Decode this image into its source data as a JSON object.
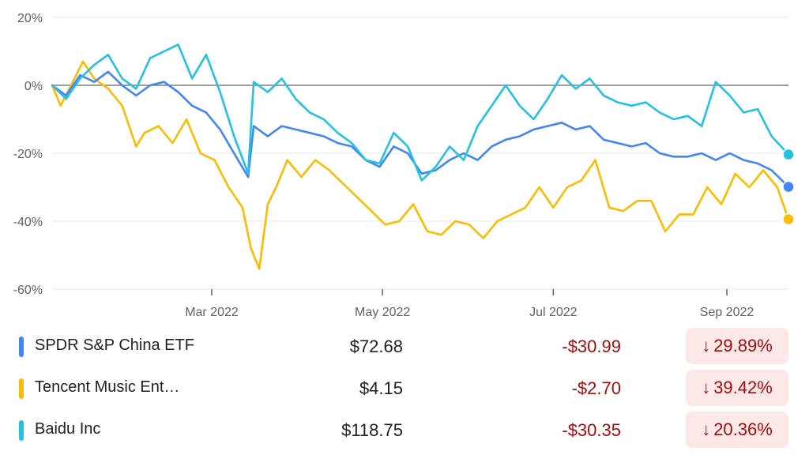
{
  "chart_data": {
    "type": "line",
    "y_ticks": [
      "20%",
      "0%",
      "-20%",
      "-40%",
      "-60%"
    ],
    "y_tick_values": [
      20,
      0,
      -20,
      -40,
      -60
    ],
    "ylim": [
      -60,
      20
    ],
    "x_ticks": [
      "Mar 2022",
      "May 2022",
      "Jul 2022",
      "Sep 2022"
    ],
    "x_tick_values": [
      "2022-03-01",
      "2022-05-01",
      "2022-07-01",
      "2022-09-01"
    ],
    "xlim": [
      "2022-01-03",
      "2022-09-23"
    ],
    "zero_line": true,
    "series": [
      {
        "name": "SPDR S&P China ETF",
        "color": "#4285f4",
        "points": [
          [
            "2022-01-03",
            0
          ],
          [
            "2022-01-08",
            -3
          ],
          [
            "2022-01-13",
            3
          ],
          [
            "2022-01-18",
            1
          ],
          [
            "2022-01-23",
            4
          ],
          [
            "2022-01-28",
            0
          ],
          [
            "2022-02-02",
            -3
          ],
          [
            "2022-02-07",
            0
          ],
          [
            "2022-02-12",
            1
          ],
          [
            "2022-02-17",
            -2
          ],
          [
            "2022-02-22",
            -6
          ],
          [
            "2022-02-27",
            -8
          ],
          [
            "2022-03-04",
            -13
          ],
          [
            "2022-03-09",
            -20
          ],
          [
            "2022-03-14",
            -27
          ],
          [
            "2022-03-16",
            -12
          ],
          [
            "2022-03-21",
            -15
          ],
          [
            "2022-03-26",
            -12
          ],
          [
            "2022-03-31",
            -13
          ],
          [
            "2022-04-05",
            -14
          ],
          [
            "2022-04-10",
            -15
          ],
          [
            "2022-04-15",
            -17
          ],
          [
            "2022-04-20",
            -18
          ],
          [
            "2022-04-25",
            -22
          ],
          [
            "2022-04-30",
            -24
          ],
          [
            "2022-05-05",
            -18
          ],
          [
            "2022-05-10",
            -20
          ],
          [
            "2022-05-15",
            -26
          ],
          [
            "2022-05-20",
            -25
          ],
          [
            "2022-05-25",
            -22
          ],
          [
            "2022-05-30",
            -20
          ],
          [
            "2022-06-04",
            -22
          ],
          [
            "2022-06-09",
            -18
          ],
          [
            "2022-06-14",
            -16
          ],
          [
            "2022-06-19",
            -15
          ],
          [
            "2022-06-24",
            -13
          ],
          [
            "2022-06-29",
            -12
          ],
          [
            "2022-07-04",
            -11
          ],
          [
            "2022-07-09",
            -13
          ],
          [
            "2022-07-14",
            -12
          ],
          [
            "2022-07-19",
            -16
          ],
          [
            "2022-07-24",
            -17
          ],
          [
            "2022-07-29",
            -18
          ],
          [
            "2022-08-03",
            -17
          ],
          [
            "2022-08-08",
            -20
          ],
          [
            "2022-08-13",
            -21
          ],
          [
            "2022-08-18",
            -21
          ],
          [
            "2022-08-23",
            -20
          ],
          [
            "2022-08-28",
            -22
          ],
          [
            "2022-09-02",
            -20
          ],
          [
            "2022-09-07",
            -22
          ],
          [
            "2022-09-12",
            -23
          ],
          [
            "2022-09-17",
            -25
          ],
          [
            "2022-09-23",
            -29.89
          ]
        ]
      },
      {
        "name": "Tencent Music Ent…",
        "color": "#fbbc04",
        "points": [
          [
            "2022-01-03",
            0
          ],
          [
            "2022-01-06",
            -6
          ],
          [
            "2022-01-11",
            2
          ],
          [
            "2022-01-14",
            7
          ],
          [
            "2022-01-18",
            2
          ],
          [
            "2022-01-23",
            -1
          ],
          [
            "2022-01-28",
            -6
          ],
          [
            "2022-02-02",
            -18
          ],
          [
            "2022-02-05",
            -14
          ],
          [
            "2022-02-10",
            -12
          ],
          [
            "2022-02-15",
            -17
          ],
          [
            "2022-02-20",
            -10
          ],
          [
            "2022-02-25",
            -20
          ],
          [
            "2022-03-02",
            -22
          ],
          [
            "2022-03-07",
            -30
          ],
          [
            "2022-03-12",
            -36
          ],
          [
            "2022-03-15",
            -48
          ],
          [
            "2022-03-18",
            -54
          ],
          [
            "2022-03-21",
            -35
          ],
          [
            "2022-03-24",
            -30
          ],
          [
            "2022-03-28",
            -22
          ],
          [
            "2022-04-02",
            -27
          ],
          [
            "2022-04-07",
            -22
          ],
          [
            "2022-04-12",
            -25
          ],
          [
            "2022-04-17",
            -29
          ],
          [
            "2022-04-22",
            -33
          ],
          [
            "2022-04-27",
            -37
          ],
          [
            "2022-05-02",
            -41
          ],
          [
            "2022-05-07",
            -40
          ],
          [
            "2022-05-12",
            -35
          ],
          [
            "2022-05-17",
            -43
          ],
          [
            "2022-05-22",
            -44
          ],
          [
            "2022-05-27",
            -40
          ],
          [
            "2022-06-01",
            -41
          ],
          [
            "2022-06-06",
            -45
          ],
          [
            "2022-06-11",
            -40
          ],
          [
            "2022-06-16",
            -38
          ],
          [
            "2022-06-21",
            -36
          ],
          [
            "2022-06-26",
            -30
          ],
          [
            "2022-07-01",
            -36
          ],
          [
            "2022-07-06",
            -30
          ],
          [
            "2022-07-11",
            -28
          ],
          [
            "2022-07-16",
            -22
          ],
          [
            "2022-07-21",
            -36
          ],
          [
            "2022-07-26",
            -37
          ],
          [
            "2022-07-31",
            -34
          ],
          [
            "2022-08-05",
            -34
          ],
          [
            "2022-08-10",
            -43
          ],
          [
            "2022-08-15",
            -38
          ],
          [
            "2022-08-20",
            -38
          ],
          [
            "2022-08-25",
            -30
          ],
          [
            "2022-08-30",
            -35
          ],
          [
            "2022-09-04",
            -26
          ],
          [
            "2022-09-09",
            -30
          ],
          [
            "2022-09-14",
            -25
          ],
          [
            "2022-09-19",
            -30
          ],
          [
            "2022-09-23",
            -39.42
          ]
        ]
      },
      {
        "name": "Baidu Inc",
        "color": "#24c1e0",
        "points": [
          [
            "2022-01-03",
            0
          ],
          [
            "2022-01-08",
            -4
          ],
          [
            "2022-01-13",
            2
          ],
          [
            "2022-01-18",
            6
          ],
          [
            "2022-01-23",
            9
          ],
          [
            "2022-01-28",
            2
          ],
          [
            "2022-02-02",
            -1
          ],
          [
            "2022-02-07",
            8
          ],
          [
            "2022-02-12",
            10
          ],
          [
            "2022-02-17",
            12
          ],
          [
            "2022-02-22",
            2
          ],
          [
            "2022-02-27",
            9
          ],
          [
            "2022-03-04",
            -2
          ],
          [
            "2022-03-09",
            -15
          ],
          [
            "2022-03-14",
            -26
          ],
          [
            "2022-03-16",
            1
          ],
          [
            "2022-03-21",
            -2
          ],
          [
            "2022-03-26",
            2
          ],
          [
            "2022-03-31",
            -4
          ],
          [
            "2022-04-05",
            -8
          ],
          [
            "2022-04-10",
            -10
          ],
          [
            "2022-04-15",
            -14
          ],
          [
            "2022-04-20",
            -17
          ],
          [
            "2022-04-25",
            -22
          ],
          [
            "2022-04-30",
            -23
          ],
          [
            "2022-05-05",
            -14
          ],
          [
            "2022-05-10",
            -18
          ],
          [
            "2022-05-15",
            -28
          ],
          [
            "2022-05-20",
            -24
          ],
          [
            "2022-05-25",
            -18
          ],
          [
            "2022-05-30",
            -22
          ],
          [
            "2022-06-04",
            -12
          ],
          [
            "2022-06-09",
            -6
          ],
          [
            "2022-06-14",
            0
          ],
          [
            "2022-06-19",
            -6
          ],
          [
            "2022-06-24",
            -10
          ],
          [
            "2022-06-29",
            -4
          ],
          [
            "2022-07-04",
            3
          ],
          [
            "2022-07-09",
            -1
          ],
          [
            "2022-07-14",
            2
          ],
          [
            "2022-07-19",
            -3
          ],
          [
            "2022-07-24",
            -5
          ],
          [
            "2022-07-29",
            -6
          ],
          [
            "2022-08-03",
            -5
          ],
          [
            "2022-08-08",
            -8
          ],
          [
            "2022-08-13",
            -10
          ],
          [
            "2022-08-18",
            -9
          ],
          [
            "2022-08-23",
            -12
          ],
          [
            "2022-08-28",
            1
          ],
          [
            "2022-09-02",
            -3
          ],
          [
            "2022-09-07",
            -8
          ],
          [
            "2022-09-12",
            -7
          ],
          [
            "2022-09-17",
            -15
          ],
          [
            "2022-09-23",
            -20.36
          ]
        ]
      }
    ]
  },
  "legend": [
    {
      "name": "SPDR S&P China ETF",
      "color": "#4285f4",
      "price": "$72.68",
      "change": "-$30.99",
      "arrow": "↓",
      "percent": "29.89%"
    },
    {
      "name": "Tencent Music Ent…",
      "color": "#fbbc04",
      "price": "$4.15",
      "change": "-$2.70",
      "arrow": "↓",
      "percent": "39.42%"
    },
    {
      "name": "Baidu Inc",
      "color": "#24c1e0",
      "price": "$118.75",
      "change": "-$30.35",
      "arrow": "↓",
      "percent": "20.36%"
    }
  ]
}
